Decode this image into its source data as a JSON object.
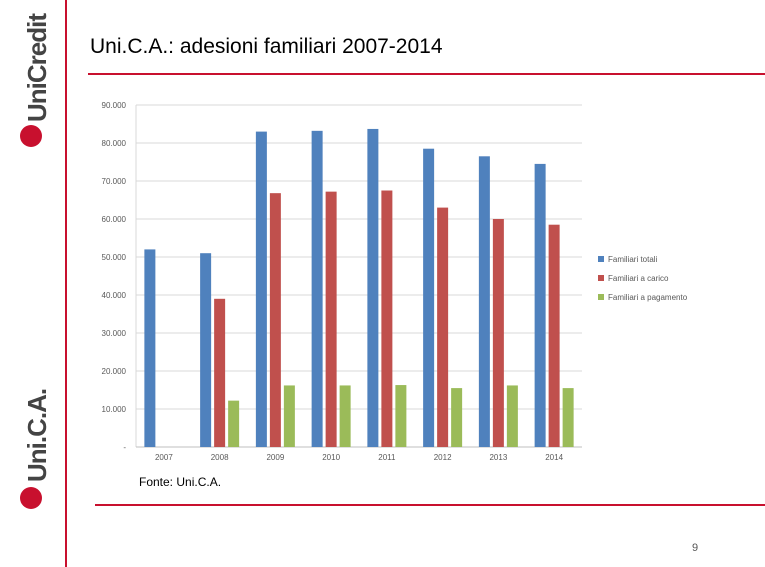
{
  "slide": {
    "title": "Uni.C.A.: adesioni  familiari 2007-2014",
    "source": "Fonte: Uni.C.A.",
    "page_number": "9",
    "logo_top": "UniCredit",
    "logo_bottom": "Uni.C.A.",
    "accent_color": "#c8102e"
  },
  "chart_data": {
    "type": "bar",
    "title": "",
    "xlabel": "",
    "ylabel": "",
    "categories": [
      "2007",
      "2008",
      "2009",
      "2010",
      "2011",
      "2012",
      "2013",
      "2014"
    ],
    "ylim": [
      0,
      90000
    ],
    "y_ticks": [
      0,
      10000,
      20000,
      30000,
      40000,
      50000,
      60000,
      70000,
      80000,
      90000
    ],
    "y_tick_labels": [
      "-",
      "10.000",
      "20.000",
      "30.000",
      "40.000",
      "50.000",
      "60.000",
      "70.000",
      "80.000",
      "90.000"
    ],
    "grid": true,
    "legend_position": "right",
    "series": [
      {
        "name": "Familiari totali",
        "color": "#4f81bd",
        "values": [
          52000,
          51000,
          83000,
          83200,
          83700,
          78500,
          76500,
          74500
        ]
      },
      {
        "name": "Familiari a carico",
        "color": "#c0504d",
        "values": [
          0,
          39000,
          66800,
          67200,
          67500,
          63000,
          60000,
          58500
        ]
      },
      {
        "name": "Familiari a pagamento",
        "color": "#9bbb59",
        "values": [
          0,
          12200,
          16200,
          16200,
          16300,
          15500,
          16200,
          15500
        ]
      }
    ]
  }
}
